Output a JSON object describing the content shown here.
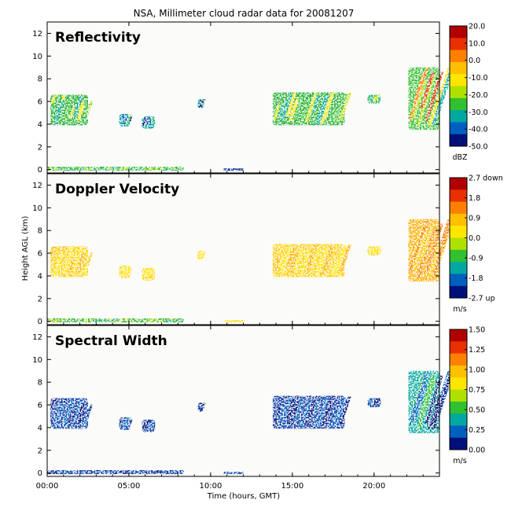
{
  "title": "NSA, Millimeter cloud radar data for 20081207",
  "chart_data": {
    "type": "heatmap",
    "xlabel": "Time (hours, GMT)",
    "ylabel": "Height AGL (km)",
    "xlim": [
      0,
      24
    ],
    "ylim": [
      -0.3,
      13
    ],
    "x_ticks": [
      {
        "value": 0,
        "label": "00:00"
      },
      {
        "value": 5,
        "label": "05:00"
      },
      {
        "value": 10,
        "label": "10:00"
      },
      {
        "value": 15,
        "label": "15:00"
      },
      {
        "value": 20,
        "label": "20:00"
      }
    ],
    "y_ticks": [
      0,
      2,
      4,
      6,
      8,
      10,
      12
    ],
    "panels": [
      {
        "name": "Reflectivity",
        "colorbar_ticks": [
          "20.0",
          "10.0",
          "0.0",
          "-10.0",
          "-20.0",
          "-30.0",
          "-40.0",
          "-50.0"
        ],
        "unit": "dBZ",
        "palette": [
          "#b00000",
          "#e83000",
          "#ff8000",
          "#ffc000",
          "#ffe600",
          "#b0e000",
          "#30c030",
          "#00a8a0",
          "#0060c0",
          "#00107a"
        ]
      },
      {
        "name": "Doppler Velocity",
        "colorbar_ticks": [
          "2.7 down",
          "1.8",
          "0.9",
          "0.0",
          "-0.9",
          "-1.8",
          "-2.7 up"
        ],
        "unit": "m/s",
        "palette": [
          "#b00000",
          "#e83000",
          "#ff8000",
          "#ffc000",
          "#ffe600",
          "#b0e000",
          "#30c030",
          "#00a8a0",
          "#0060c0",
          "#00107a"
        ]
      },
      {
        "name": "Spectral Width",
        "colorbar_ticks": [
          "1.50",
          "1.25",
          "1.00",
          "0.75",
          "0.50",
          "0.25",
          "0.00"
        ],
        "unit": "m/s",
        "palette": [
          "#b00000",
          "#e83000",
          "#ff8000",
          "#ffc000",
          "#ffe600",
          "#b0e000",
          "#30c030",
          "#00a8a0",
          "#0060c0",
          "#00107a"
        ]
      }
    ],
    "echo_regions": [
      {
        "t": [
          0.2,
          2.5
        ],
        "h": [
          3.9,
          6.6
        ],
        "refl": "green-yellow",
        "vel": "yellow-orange",
        "width": "dark-blue"
      },
      {
        "t": [
          4.4,
          5.1
        ],
        "h": [
          3.8,
          4.9
        ],
        "refl": "blue-green",
        "vel": "yellow",
        "width": "dark-blue"
      },
      {
        "t": [
          5.8,
          6.6
        ],
        "h": [
          3.6,
          4.7
        ],
        "refl": "blue-green",
        "vel": "yellow",
        "width": "dark-blue"
      },
      {
        "t": [
          9.2,
          9.6
        ],
        "h": [
          5.4,
          6.2
        ],
        "refl": "blue-green",
        "vel": "yellow",
        "width": "dark-blue"
      },
      {
        "t": [
          13.8,
          18.2
        ],
        "h": [
          3.9,
          6.8
        ],
        "refl": "green-yellow",
        "vel": "yellow-orange",
        "width": "dark-blue"
      },
      {
        "t": [
          19.6,
          20.4
        ],
        "h": [
          5.8,
          6.6
        ],
        "refl": "green",
        "vel": "yellow",
        "width": "dark-blue"
      },
      {
        "t": [
          22.1,
          24.0
        ],
        "h": [
          3.5,
          9.0
        ],
        "refl": "green-yellow-red",
        "vel": "orange",
        "width": "blue-green"
      },
      {
        "t": [
          0.0,
          8.3
        ],
        "h": [
          -0.1,
          0.25
        ],
        "refl": "green",
        "vel": "green-yellow",
        "width": "dark-blue"
      },
      {
        "t": [
          10.8,
          12.0
        ],
        "h": [
          -0.1,
          0.1
        ],
        "refl": "blue",
        "vel": "yellow",
        "width": "dark-blue"
      }
    ]
  }
}
